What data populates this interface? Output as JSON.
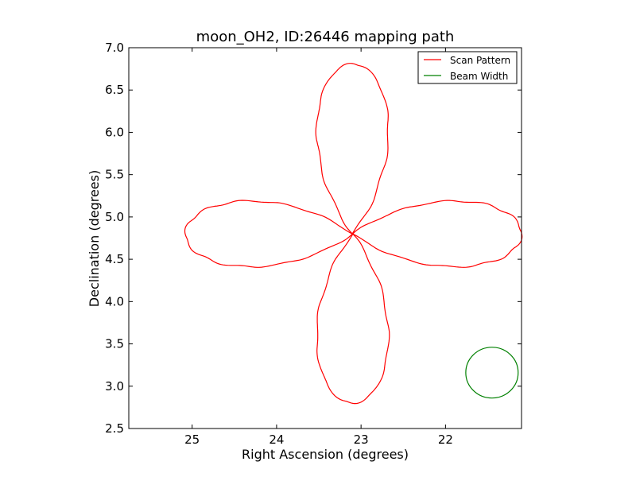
{
  "chart_data": {
    "type": "line",
    "title": "moon_OH2, ID:26446 mapping path",
    "xlabel": "Right Ascension (degrees)",
    "ylabel": "Declination (degrees)",
    "xlim": [
      25.75,
      21.1
    ],
    "ylim": [
      2.5,
      7.0
    ],
    "x_inverted": true,
    "xticks": [
      25,
      24,
      23,
      22
    ],
    "yticks": [
      2.5,
      3.0,
      3.5,
      4.0,
      4.5,
      5.0,
      5.5,
      6.0,
      6.5,
      7.0
    ],
    "xtick_labels": [
      "25",
      "24",
      "23",
      "22"
    ],
    "ytick_labels": [
      "2.5",
      "3.0",
      "3.5",
      "4.0",
      "4.5",
      "5.0",
      "5.5",
      "6.0",
      "6.5",
      "7.0"
    ],
    "grid": false,
    "legend_position": "top-right",
    "series": [
      {
        "name": "Scan Pattern",
        "color": "#ff0000",
        "kind": "four-petal rose (cos 2t) centered at RA 23.1, Dec 4.8",
        "center": [
          23.1,
          4.8
        ],
        "petal_extent": {
          "ra_east": 25.08,
          "ra_west": 21.1,
          "dec_top": 6.81,
          "dec_bottom": 2.8
        },
        "petal_half_width": {
          "ra": 0.6,
          "dec": 0.55
        }
      },
      {
        "name": "Beam Width",
        "color": "#008000",
        "kind": "circle",
        "center": [
          21.45,
          3.16
        ],
        "radius_ra": 0.31,
        "radius_dec": 0.3
      }
    ]
  }
}
